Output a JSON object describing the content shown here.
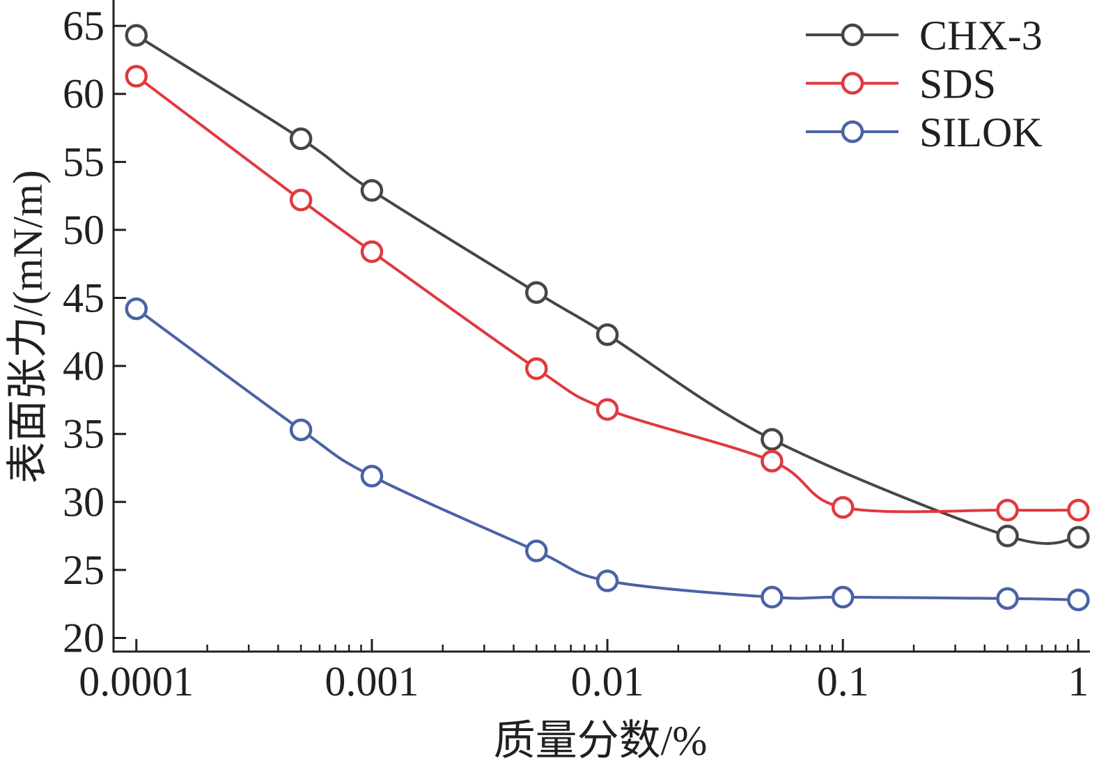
{
  "chart_data": {
    "type": "line",
    "x_scale": "log",
    "xlabel": "质量分数/%",
    "ylabel": "表面张力/(mN/m)",
    "xlim": [
      8e-05,
      1.12
    ],
    "ylim": [
      19,
      66.8
    ],
    "xticks": [
      0.0001,
      0.001,
      0.01,
      0.1,
      1
    ],
    "yticks": [
      20,
      25,
      30,
      35,
      40,
      45,
      50,
      55,
      60,
      65
    ],
    "grid": false,
    "legend": "top-right",
    "axis_color": "#231f20",
    "series": [
      {
        "name": "CHX-3",
        "color": "#4a4542",
        "marker": "open-circle",
        "x": [
          0.0001,
          0.0005,
          0.001,
          0.005,
          0.01,
          0.05,
          0.5,
          1
        ],
        "y": [
          64.3,
          56.7,
          52.9,
          45.4,
          42.3,
          34.6,
          27.5,
          27.4
        ]
      },
      {
        "name": "SDS",
        "color": "#e0393e",
        "marker": "open-circle",
        "x": [
          0.0001,
          0.0005,
          0.001,
          0.005,
          0.01,
          0.05,
          0.1,
          0.5,
          1
        ],
        "y": [
          61.3,
          52.2,
          48.4,
          39.8,
          36.8,
          33.0,
          29.6,
          29.4,
          29.4
        ]
      },
      {
        "name": "SILOK",
        "color": "#4a62a5",
        "marker": "open-circle",
        "x": [
          0.0001,
          0.0005,
          0.001,
          0.005,
          0.01,
          0.05,
          0.1,
          0.5,
          1
        ],
        "y": [
          44.2,
          35.3,
          31.9,
          26.4,
          24.2,
          23.0,
          23.0,
          22.9,
          22.8
        ]
      }
    ]
  }
}
